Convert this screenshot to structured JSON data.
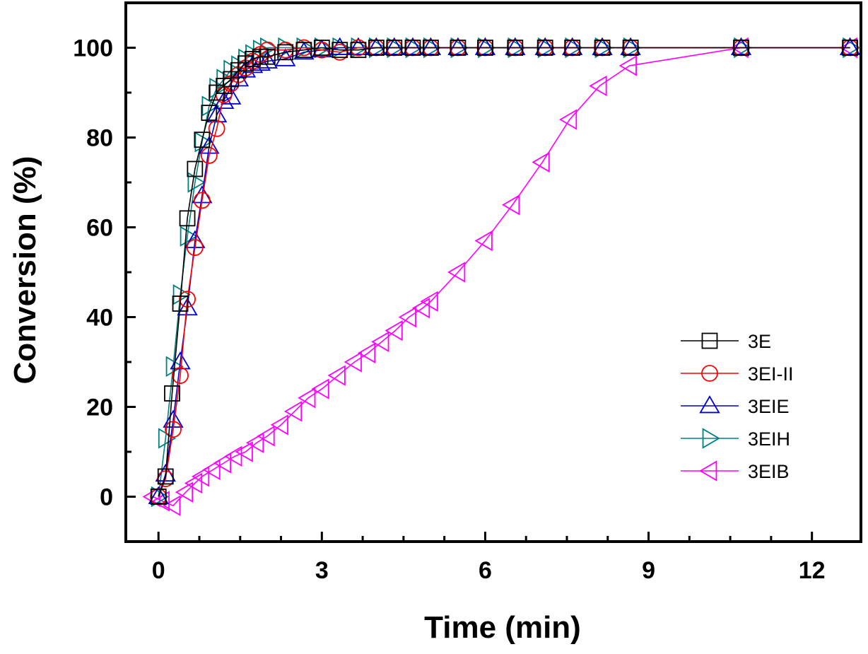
{
  "chart_data": {
    "type": "line",
    "title": "",
    "xlabel": "Time (min)",
    "ylabel": "Conversion (%)",
    "xlim": [
      -0.6,
      12.9
    ],
    "ylim": [
      -10,
      110
    ],
    "xticks": [
      0,
      3,
      6,
      9,
      12
    ],
    "yticks": [
      0,
      20,
      40,
      60,
      80,
      100
    ],
    "xtick_labels": [
      "0",
      "3",
      "6",
      "9",
      "12"
    ],
    "ytick_labels": [
      "0",
      "20",
      "40",
      "60",
      "80",
      "100"
    ],
    "grid": false,
    "legend_position": "lower-right",
    "series": [
      {
        "name": "3E",
        "marker": "square",
        "color": "#000000",
        "x": [
          0,
          0.13,
          0.25,
          0.4,
          0.53,
          0.67,
          0.8,
          0.93,
          1.07,
          1.2,
          1.33,
          1.47,
          1.6,
          1.73,
          1.87,
          2.0,
          2.33,
          2.67,
          3.0,
          3.33,
          3.67,
          4.0,
          4.33,
          4.67,
          5.0,
          5.5,
          6.0,
          6.55,
          7.1,
          7.6,
          8.15,
          8.67,
          10.7,
          12.7
        ],
        "y": [
          0,
          4.5,
          23,
          43,
          62,
          73,
          79.5,
          85.5,
          90,
          91.5,
          93,
          95,
          96.5,
          97.5,
          98,
          98,
          99,
          99.5,
          100,
          99.5,
          99.5,
          100,
          100,
          100,
          100,
          100,
          100,
          100,
          100,
          100,
          100,
          100,
          100,
          100
        ]
      },
      {
        "name": "3EI-II",
        "marker": "circle",
        "color": "#ff0000",
        "x": [
          0,
          0.13,
          0.27,
          0.4,
          0.53,
          0.67,
          0.8,
          0.93,
          1.07,
          1.2,
          1.33,
          1.47,
          1.6,
          1.73,
          1.87,
          2.0,
          2.33,
          2.67,
          3.0,
          3.33,
          3.67,
          4.0,
          4.33,
          4.67,
          5.0,
          5.5,
          6.0,
          6.55,
          7.1,
          7.6,
          8.15,
          8.67,
          10.7,
          12.7
        ],
        "y": [
          0,
          4,
          15,
          27,
          44,
          55.5,
          66,
          76,
          82,
          89.5,
          92,
          94,
          95.5,
          97,
          98.5,
          99.5,
          99.5,
          100,
          99.5,
          99,
          100,
          100,
          100,
          100,
          100,
          100,
          100,
          100,
          100,
          100,
          100,
          100,
          100,
          100
        ]
      },
      {
        "name": "3EIE",
        "marker": "triangle-up",
        "color": "#0000cc",
        "x": [
          0,
          0.13,
          0.27,
          0.4,
          0.53,
          0.67,
          0.8,
          0.93,
          1.07,
          1.2,
          1.33,
          1.47,
          1.6,
          1.73,
          1.87,
          2.0,
          2.33,
          2.67,
          3.0,
          3.33,
          3.67,
          4.0,
          4.33,
          4.67,
          5.0,
          5.5,
          6.0,
          6.55,
          7.1,
          7.6,
          8.15,
          8.67,
          10.7,
          12.7
        ],
        "y": [
          0,
          5,
          17,
          30,
          42,
          57,
          67,
          78,
          85,
          88,
          89,
          93,
          95,
          96,
          96.5,
          97,
          97.5,
          99,
          99.5,
          100,
          100,
          100,
          100,
          100,
          100,
          100,
          100,
          100,
          100,
          100,
          100,
          100,
          100,
          100
        ]
      },
      {
        "name": "3EIH",
        "marker": "triangle-right",
        "color": "#008080",
        "x": [
          0,
          0.13,
          0.27,
          0.4,
          0.53,
          0.67,
          0.8,
          0.93,
          1.07,
          1.2,
          1.33,
          1.47,
          1.6,
          1.73,
          1.87,
          2.0,
          2.33,
          2.67,
          3.0,
          3.33,
          3.67,
          4.0,
          4.33,
          4.67,
          5.0,
          5.5,
          6.0,
          6.55,
          7.1,
          7.6,
          8.15,
          8.67,
          10.7,
          12.7
        ],
        "y": [
          0,
          13,
          29,
          45,
          58,
          70,
          79,
          87,
          91,
          93,
          95,
          96,
          97.5,
          98.5,
          99.5,
          100,
          100,
          100,
          100,
          100,
          100,
          100,
          100,
          100,
          100,
          100,
          100,
          100,
          100,
          100,
          100,
          100,
          100,
          100
        ]
      },
      {
        "name": "3EIB",
        "marker": "triangle-left",
        "color": "#ff00ff",
        "x": [
          -0.1,
          0.07,
          0.27,
          0.5,
          0.67,
          0.8,
          1.0,
          1.2,
          1.4,
          1.6,
          1.8,
          2.0,
          2.25,
          2.5,
          2.75,
          3.0,
          3.3,
          3.6,
          3.85,
          4.1,
          4.35,
          4.6,
          4.85,
          5.0,
          5.5,
          6.0,
          6.5,
          7.05,
          7.55,
          8.1,
          8.65,
          10.7,
          12.7
        ],
        "y": [
          0,
          -1,
          -2,
          1,
          3,
          4.5,
          6,
          7.5,
          9,
          10,
          12,
          13.5,
          16,
          19,
          22,
          24,
          27,
          30,
          32,
          34.5,
          37,
          40,
          42,
          43.5,
          50,
          57,
          65,
          74.5,
          84,
          91.5,
          96,
          100,
          100
        ]
      }
    ]
  }
}
